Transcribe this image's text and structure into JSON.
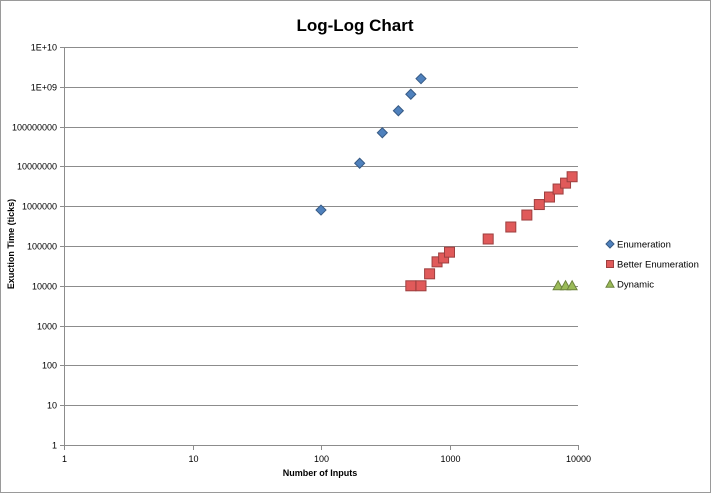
{
  "chart_data": {
    "type": "scatter",
    "title": "Log-Log Chart",
    "xlabel": "Number of Inputs",
    "ylabel": "Exuction Time (ticks)",
    "x_scale": "log",
    "y_scale": "log",
    "xlim": [
      1,
      10000
    ],
    "ylim": [
      1,
      10000000000
    ],
    "x_ticks": [
      "1",
      "10",
      "100",
      "1000",
      "10000"
    ],
    "y_ticks": [
      "1",
      "10",
      "100",
      "1000",
      "10000",
      "100000",
      "1000000",
      "10000000",
      "100000000",
      "1E+09",
      "1E+10"
    ],
    "grid": "horizontal",
    "legend_position": "right",
    "series": [
      {
        "name": "Enumeration",
        "marker": "diamond",
        "color": "#4f81bd",
        "points": [
          [
            100,
            800000
          ],
          [
            200,
            12000000
          ],
          [
            300,
            70000000
          ],
          [
            400,
            250000000
          ],
          [
            500,
            650000000
          ],
          [
            600,
            1600000000
          ]
        ]
      },
      {
        "name": "Better Enumeration",
        "marker": "square",
        "color": "#e05a5a",
        "points": [
          [
            500,
            10000
          ],
          [
            600,
            10000
          ],
          [
            700,
            20000
          ],
          [
            800,
            40000
          ],
          [
            900,
            50000
          ],
          [
            1000,
            70000
          ],
          [
            2000,
            150000
          ],
          [
            3000,
            300000
          ],
          [
            4000,
            600000
          ],
          [
            5000,
            1100000
          ],
          [
            6000,
            1700000
          ],
          [
            7000,
            2700000
          ],
          [
            8000,
            3800000
          ],
          [
            9000,
            5500000
          ]
        ]
      },
      {
        "name": "Dynamic",
        "marker": "triangle",
        "color": "#9bbb59",
        "points": [
          [
            7000,
            10000
          ],
          [
            8000,
            10000
          ],
          [
            9000,
            10000
          ]
        ]
      }
    ]
  }
}
